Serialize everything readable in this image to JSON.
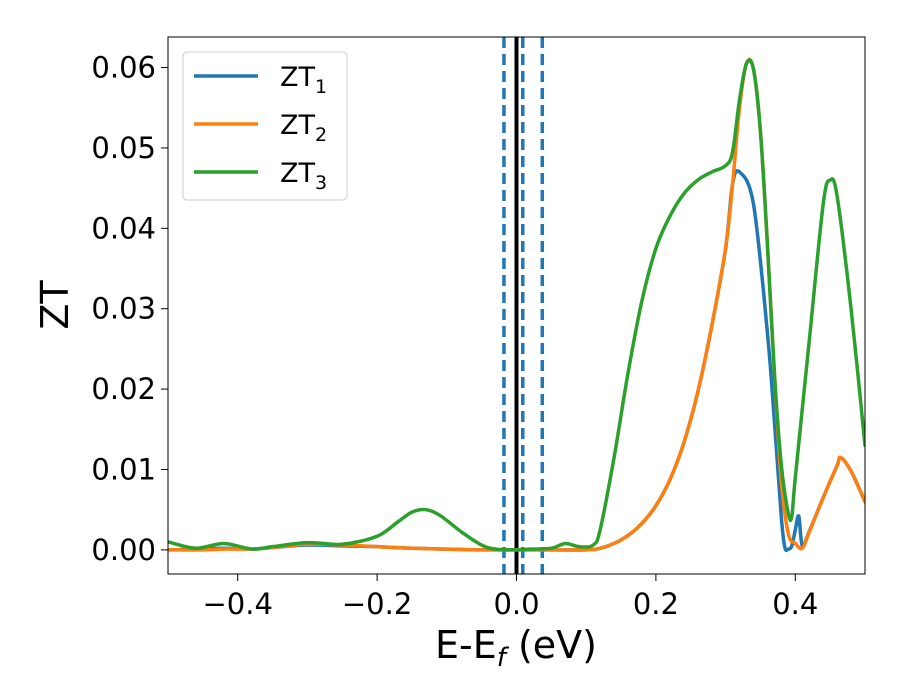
{
  "chart_data": {
    "type": "line",
    "xlabel": {
      "main": "E-E",
      "sub": "f",
      "tail": " (eV)"
    },
    "ylabel": "ZT",
    "xlim": [
      -0.5,
      0.5
    ],
    "ylim": [
      -0.003,
      0.0638
    ],
    "xticks": [
      -0.4,
      -0.2,
      0.0,
      0.2,
      0.4
    ],
    "xtick_labels": [
      "−0.4",
      "−0.2",
      "0.0",
      "0.2",
      "0.4"
    ],
    "yticks": [
      0.0,
      0.01,
      0.02,
      0.03,
      0.04,
      0.05,
      0.06
    ],
    "ytick_labels": [
      "0.00",
      "0.01",
      "0.02",
      "0.03",
      "0.04",
      "0.05",
      "0.06"
    ],
    "grid": false,
    "legend_position": "top-left",
    "vlines": [
      {
        "x": 0.0,
        "style": "solid",
        "color": "#000000"
      },
      {
        "x": -0.018,
        "style": "dashed",
        "color": "#1f77b4"
      },
      {
        "x": 0.009,
        "style": "dashed",
        "color": "#1f77b4"
      },
      {
        "x": 0.037,
        "style": "dashed",
        "color": "#1f77b4"
      }
    ],
    "series": [
      {
        "name": "ZT",
        "sub": "1",
        "color": "#1f77b4",
        "x": [
          -0.5,
          -0.45,
          -0.42,
          -0.38,
          -0.35,
          -0.3,
          -0.25,
          -0.2,
          -0.15,
          -0.1,
          -0.05,
          0.0,
          0.05,
          0.1,
          0.12,
          0.14,
          0.16,
          0.18,
          0.2,
          0.22,
          0.24,
          0.26,
          0.28,
          0.3,
          0.31,
          0.32,
          0.34,
          0.36,
          0.37,
          0.38,
          0.385,
          0.39,
          0.395,
          0.4,
          0.405,
          0.41,
          0.42,
          0.44,
          0.46,
          0.465,
          0.48,
          0.5
        ],
        "y": [
          0.0,
          0.0001,
          0.0002,
          0.0001,
          0.0003,
          0.0006,
          0.0005,
          0.0004,
          0.0002,
          0.0001,
          0.0,
          0.0,
          0.0,
          0.0,
          0.0002,
          0.0008,
          0.0018,
          0.0033,
          0.0055,
          0.0087,
          0.0133,
          0.0196,
          0.0278,
          0.0375,
          0.0455,
          0.047,
          0.043,
          0.027,
          0.016,
          0.004,
          0.0003,
          0.0001,
          0.0005,
          0.0025,
          0.0042,
          0.0005,
          0.0023,
          0.0065,
          0.0105,
          0.0115,
          0.0098,
          0.006
        ]
      },
      {
        "name": "ZT",
        "sub": "2",
        "color": "#ff7f0e",
        "x": [
          -0.5,
          -0.45,
          -0.42,
          -0.38,
          -0.35,
          -0.3,
          -0.25,
          -0.2,
          -0.15,
          -0.1,
          -0.05,
          0.0,
          0.05,
          0.1,
          0.12,
          0.14,
          0.16,
          0.18,
          0.2,
          0.22,
          0.24,
          0.26,
          0.28,
          0.3,
          0.31,
          0.32,
          0.33,
          0.34,
          0.35,
          0.36,
          0.37,
          0.38,
          0.39,
          0.4,
          0.41,
          0.42,
          0.44,
          0.46,
          0.465,
          0.48,
          0.5
        ],
        "y": [
          0.0,
          0.0,
          0.0001,
          0.0001,
          0.0003,
          0.0007,
          0.0006,
          0.0004,
          0.0002,
          0.0001,
          0.0,
          0.0,
          0.0,
          0.0,
          0.0002,
          0.0008,
          0.0018,
          0.0033,
          0.0055,
          0.0087,
          0.0133,
          0.0196,
          0.0278,
          0.0375,
          0.0455,
          0.055,
          0.0605,
          0.0598,
          0.052,
          0.038,
          0.022,
          0.0085,
          0.002,
          0.0008,
          0.0002,
          0.0022,
          0.0065,
          0.0105,
          0.0115,
          0.0098,
          0.006
        ]
      },
      {
        "name": "ZT",
        "sub": "3",
        "color": "#2ca02c",
        "x": [
          -0.5,
          -0.46,
          -0.42,
          -0.38,
          -0.35,
          -0.3,
          -0.25,
          -0.2,
          -0.17,
          -0.15,
          -0.13,
          -0.11,
          -0.08,
          -0.05,
          -0.03,
          0.0,
          0.02,
          0.05,
          0.07,
          0.09,
          0.11,
          0.12,
          0.14,
          0.16,
          0.18,
          0.2,
          0.22,
          0.24,
          0.26,
          0.28,
          0.3,
          0.31,
          0.32,
          0.33,
          0.34,
          0.35,
          0.36,
          0.37,
          0.38,
          0.39,
          0.395,
          0.4,
          0.42,
          0.44,
          0.45,
          0.46,
          0.48,
          0.5
        ],
        "y": [
          0.001,
          0.0002,
          0.0008,
          0.0001,
          0.0004,
          0.0009,
          0.0007,
          0.0017,
          0.0035,
          0.0047,
          0.005,
          0.0043,
          0.0023,
          0.0006,
          0.0001,
          0.0,
          0.0001,
          0.0002,
          0.0008,
          0.0004,
          0.0006,
          0.0025,
          0.0115,
          0.022,
          0.031,
          0.0375,
          0.0415,
          0.0443,
          0.046,
          0.047,
          0.0478,
          0.0495,
          0.056,
          0.0605,
          0.0598,
          0.052,
          0.038,
          0.022,
          0.0105,
          0.0045,
          0.0042,
          0.009,
          0.026,
          0.043,
          0.046,
          0.044,
          0.03,
          0.013
        ]
      }
    ]
  }
}
